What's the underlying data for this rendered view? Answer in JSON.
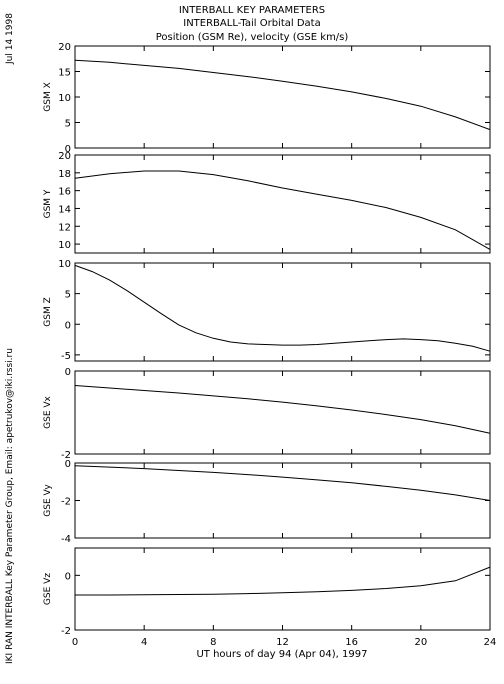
{
  "chart_data": {
    "type": "line",
    "title_lines": [
      "INTERBALL KEY PARAMETERS",
      "INTERBALL-Tail Orbital Data",
      "Position (GSM Re), velocity (GSE km/s)"
    ],
    "date_label": "Jul 14 1998",
    "side_label": "IKI RAN INTERBALL Key Parameter Group, Email: apetrukov@iki.rssi.ru",
    "xlabel": "UT hours of day  94 (Apr 04), 1997",
    "x_range": [
      0,
      24
    ],
    "x_ticks": [
      0,
      4,
      8,
      12,
      16,
      20,
      24
    ],
    "panels": [
      {
        "ylabel": "GSM X",
        "y_range": [
          0,
          20
        ],
        "y_ticks": [
          0,
          5,
          10,
          15,
          20
        ],
        "x": [
          0,
          2,
          4,
          6,
          8,
          10,
          12,
          14,
          16,
          18,
          20,
          22,
          24
        ],
        "y": [
          17.2,
          16.8,
          16.2,
          15.6,
          14.8,
          14.0,
          13.1,
          12.1,
          11.0,
          9.7,
          8.2,
          6.1,
          3.6
        ]
      },
      {
        "ylabel": "GSM Y",
        "y_range": [
          9,
          20
        ],
        "y_ticks": [
          10,
          12,
          14,
          16,
          18,
          20
        ],
        "x": [
          0,
          2,
          4,
          6,
          8,
          10,
          12,
          14,
          16,
          18,
          20,
          22,
          24
        ],
        "y": [
          17.4,
          17.9,
          18.2,
          18.2,
          17.8,
          17.1,
          16.3,
          15.6,
          14.9,
          14.1,
          13.0,
          11.6,
          9.4
        ]
      },
      {
        "ylabel": "GSM Z",
        "y_range": [
          -6,
          10
        ],
        "y_ticks": [
          -5,
          0,
          5,
          10
        ],
        "x": [
          0,
          1,
          2,
          3,
          4,
          5,
          6,
          7,
          8,
          9,
          10,
          11,
          12,
          13,
          14,
          15,
          16,
          17,
          18,
          19,
          20,
          21,
          22,
          23,
          24
        ],
        "y": [
          9.6,
          8.6,
          7.2,
          5.5,
          3.6,
          1.7,
          -0.1,
          -1.4,
          -2.3,
          -2.9,
          -3.2,
          -3.3,
          -3.4,
          -3.4,
          -3.3,
          -3.1,
          -2.9,
          -2.7,
          -2.5,
          -2.4,
          -2.5,
          -2.7,
          -3.1,
          -3.6,
          -4.4
        ]
      },
      {
        "ylabel": "GSE Vx",
        "y_range": [
          -2,
          0
        ],
        "y_ticks": [
          -2,
          0
        ],
        "x": [
          0,
          2,
          4,
          6,
          8,
          10,
          12,
          14,
          16,
          18,
          20,
          22,
          24
        ],
        "y": [
          -0.35,
          -0.41,
          -0.47,
          -0.53,
          -0.6,
          -0.67,
          -0.75,
          -0.84,
          -0.94,
          -1.05,
          -1.17,
          -1.32,
          -1.5
        ]
      },
      {
        "ylabel": "GSE Vy",
        "y_range": [
          -4,
          0
        ],
        "y_ticks": [
          -4,
          -2,
          0
        ],
        "x": [
          0,
          2,
          4,
          6,
          8,
          10,
          12,
          14,
          16,
          18,
          20,
          22,
          24
        ],
        "y": [
          -0.15,
          -0.22,
          -0.3,
          -0.4,
          -0.5,
          -0.62,
          -0.75,
          -0.9,
          -1.05,
          -1.25,
          -1.45,
          -1.7,
          -2.0
        ]
      },
      {
        "ylabel": "GSE Vz",
        "y_range": [
          -2,
          1
        ],
        "y_ticks": [
          -2,
          0
        ],
        "x": [
          0,
          2,
          4,
          6,
          8,
          10,
          12,
          14,
          16,
          18,
          20,
          22,
          24
        ],
        "y": [
          -0.72,
          -0.72,
          -0.71,
          -0.7,
          -0.69,
          -0.67,
          -0.64,
          -0.6,
          -0.55,
          -0.48,
          -0.38,
          -0.2,
          0.3
        ]
      }
    ]
  }
}
